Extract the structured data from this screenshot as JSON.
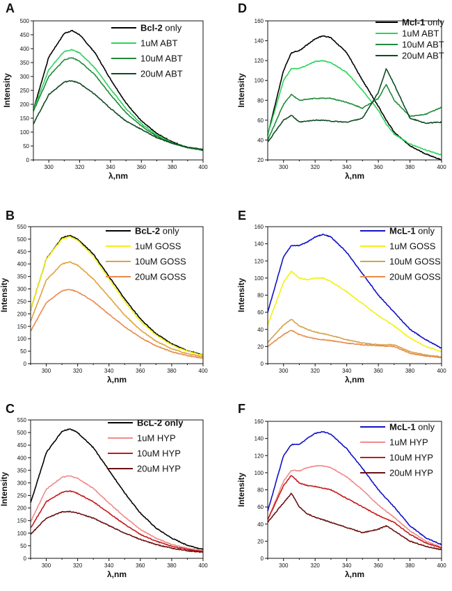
{
  "chart_data": [
    {
      "id": "A",
      "letter": "A",
      "type": "line",
      "xlabel": "λ,nm",
      "ylabel": "Intensity",
      "xlim": [
        290,
        400
      ],
      "ylim": [
        0,
        500
      ],
      "xticks": [
        300,
        320,
        340,
        360,
        380,
        400
      ],
      "yticks": [
        0,
        50,
        100,
        150,
        200,
        250,
        300,
        350,
        400,
        450,
        500
      ],
      "x": [
        290,
        300,
        310,
        315,
        320,
        330,
        340,
        350,
        360,
        370,
        380,
        390,
        400
      ],
      "series": [
        {
          "name": "Bcl-2 only",
          "bold_part": "Bcl-2",
          "rest": " only",
          "color": "#000000",
          "values": [
            180,
            370,
            455,
            465,
            450,
            385,
            290,
            205,
            140,
            95,
            65,
            45,
            35
          ]
        },
        {
          "name": "1uM ABT",
          "bold_part": "",
          "rest": "1uM ABT",
          "color": "#2ad45a",
          "values": [
            180,
            325,
            390,
            396,
            385,
            330,
            255,
            185,
            130,
            90,
            62,
            45,
            35
          ]
        },
        {
          "name": "10uM ABT",
          "bold_part": "",
          "rest": "10uM ABT",
          "color": "#1f8a3a",
          "values": [
            175,
            300,
            360,
            368,
            355,
            305,
            235,
            170,
            122,
            85,
            60,
            44,
            35
          ]
        },
        {
          "name": "20uM ABT",
          "bold_part": "",
          "rest": "20uM ABT",
          "color": "#0e4a22",
          "values": [
            130,
            235,
            280,
            285,
            275,
            235,
            185,
            140,
            110,
            80,
            60,
            45,
            38
          ]
        }
      ]
    },
    {
      "id": "D",
      "letter": "D",
      "type": "line",
      "xlabel": "λ,nm",
      "ylabel": "Intensity",
      "xlim": [
        290,
        400
      ],
      "ylim": [
        20,
        160
      ],
      "xticks": [
        300,
        320,
        340,
        360,
        380,
        400
      ],
      "yticks": [
        20,
        40,
        60,
        80,
        100,
        120,
        140,
        160
      ],
      "x": [
        290,
        300,
        305,
        310,
        320,
        325,
        330,
        340,
        350,
        360,
        365,
        370,
        380,
        390,
        400
      ],
      "series": [
        {
          "name": "Mcl-1 only",
          "bold_part": "Mcl-1",
          "rest": " only",
          "color": "#000000",
          "values": [
            45,
            110,
            128,
            130,
            142,
            145,
            143,
            128,
            100,
            74,
            60,
            48,
            34,
            26,
            20
          ]
        },
        {
          "name": "1uM ABT",
          "bold_part": "",
          "rest": "1uM ABT",
          "color": "#2ad45a",
          "values": [
            45,
            100,
            112,
            112,
            119,
            120,
            118,
            108,
            90,
            70,
            56,
            46,
            36,
            30,
            25
          ]
        },
        {
          "name": "10uM ABT",
          "bold_part": "",
          "rest": "10uM ABT",
          "color": "#1f8a3a",
          "values": [
            40,
            76,
            86,
            80,
            82,
            82,
            82,
            78,
            72,
            82,
            96,
            80,
            64,
            66,
            73
          ]
        },
        {
          "name": "20uM ABT",
          "bold_part": "",
          "rest": "20uM ABT",
          "color": "#0e4a22",
          "values": [
            38,
            60,
            65,
            58,
            60,
            60,
            59,
            58,
            62,
            88,
            112,
            96,
            62,
            57,
            58
          ]
        }
      ]
    },
    {
      "id": "B",
      "letter": "B",
      "type": "line",
      "xlabel": "λ,nm",
      "ylabel": "Intensity",
      "xlim": [
        290,
        400
      ],
      "ylim": [
        0,
        550
      ],
      "xticks": [
        300,
        320,
        340,
        360,
        380,
        400
      ],
      "yticks": [
        0,
        50,
        100,
        150,
        200,
        250,
        300,
        350,
        400,
        450,
        500,
        550
      ],
      "x": [
        290,
        300,
        310,
        315,
        320,
        330,
        340,
        350,
        360,
        370,
        380,
        390,
        400
      ],
      "series": [
        {
          "name": "BcL-2 only",
          "bold_part": "BcL-2",
          "rest": " only",
          "color": "#000000",
          "values": [
            215,
            420,
            505,
            515,
            500,
            440,
            350,
            260,
            180,
            120,
            80,
            52,
            35
          ]
        },
        {
          "name": "1uM GOSS",
          "bold_part": "",
          "rest": "1uM GOSS",
          "color": "#f2f20f",
          "values": [
            215,
            420,
            500,
            510,
            495,
            430,
            340,
            250,
            170,
            115,
            75,
            50,
            33
          ]
        },
        {
          "name": "10uM GOSS",
          "bold_part": "",
          "rest": "10uM GOSS",
          "color": "#e0a23a",
          "values": [
            170,
            335,
            400,
            408,
            395,
            340,
            268,
            195,
            135,
            90,
            60,
            40,
            28
          ]
        },
        {
          "name": "20uM GOSS",
          "bold_part": "",
          "rest": "20uM GOSS",
          "color": "#e88a4a",
          "values": [
            130,
            245,
            292,
            298,
            288,
            250,
            198,
            148,
            105,
            72,
            48,
            32,
            22
          ]
        }
      ]
    },
    {
      "id": "E",
      "letter": "E",
      "type": "line",
      "xlabel": "λ,nm",
      "ylabel": "Intensity",
      "xlim": [
        290,
        400
      ],
      "ylim": [
        0,
        160
      ],
      "xticks": [
        300,
        320,
        340,
        360,
        380,
        400
      ],
      "yticks": [
        0,
        20,
        40,
        60,
        80,
        100,
        120,
        140,
        160
      ],
      "x": [
        290,
        300,
        305,
        310,
        315,
        320,
        325,
        330,
        340,
        350,
        360,
        370,
        380,
        390,
        400
      ],
      "series": [
        {
          "name": "McL-1 only",
          "bold_part": "McL-1",
          "rest": " only",
          "color": "#1010c8",
          "values": [
            60,
            125,
            138,
            138,
            142,
            148,
            151,
            148,
            130,
            105,
            80,
            60,
            40,
            28,
            18
          ]
        },
        {
          "name": "1uM GOSS",
          "bold_part": "",
          "rest": "1uM GOSS",
          "color": "#f2f20f",
          "values": [
            45,
            95,
            108,
            100,
            98,
            100,
            100,
            96,
            84,
            70,
            56,
            44,
            30,
            20,
            14
          ]
        },
        {
          "name": "10uM GOSS",
          "bold_part": "",
          "rest": "10uM GOSS",
          "color": "#d4a24a",
          "values": [
            25,
            45,
            52,
            44,
            40,
            37,
            35,
            33,
            28,
            24,
            22,
            22,
            14,
            10,
            8
          ]
        },
        {
          "name": "20uM GOSS",
          "bold_part": "",
          "rest": "20uM GOSS",
          "color": "#e88a4a",
          "values": [
            20,
            34,
            39,
            34,
            31,
            29,
            28,
            27,
            24,
            22,
            21,
            20,
            12,
            9,
            7
          ]
        }
      ]
    },
    {
      "id": "C",
      "letter": "C",
      "type": "line",
      "xlabel": "λ,nm",
      "ylabel": "Intensity",
      "xlim": [
        290,
        400
      ],
      "ylim": [
        0,
        550
      ],
      "xticks": [
        300,
        320,
        340,
        360,
        380,
        400
      ],
      "yticks": [
        0,
        50,
        100,
        150,
        200,
        250,
        300,
        350,
        400,
        450,
        500,
        550
      ],
      "x": [
        290,
        300,
        310,
        315,
        320,
        330,
        340,
        350,
        360,
        370,
        380,
        390,
        400
      ],
      "series": [
        {
          "name": "BcL-2 only",
          "bold_part": "BcL-2 only",
          "rest": "",
          "color": "#000000",
          "values": [
            220,
            420,
            505,
            515,
            500,
            440,
            350,
            260,
            180,
            120,
            80,
            52,
            35
          ]
        },
        {
          "name": "1uM HYP",
          "bold_part": "",
          "rest": "1uM HYP",
          "color": "#f08a8a",
          "values": [
            145,
            275,
            322,
            328,
            318,
            278,
            220,
            165,
            115,
            80,
            55,
            40,
            30
          ]
        },
        {
          "name": "10uM HYP",
          "bold_part": "",
          "rest": "10uM HYP",
          "color": "#c41a1a",
          "values": [
            120,
            225,
            262,
            268,
            258,
            225,
            180,
            135,
            95,
            68,
            48,
            35,
            27
          ]
        },
        {
          "name": "20uM HYP",
          "bold_part": "",
          "rest": "20uM HYP",
          "color": "#6a1010",
          "values": [
            95,
            160,
            184,
            186,
            180,
            160,
            130,
            100,
            75,
            55,
            40,
            30,
            24
          ]
        }
      ]
    },
    {
      "id": "F",
      "letter": "F",
      "type": "line",
      "xlabel": "λ,nm",
      "ylabel": "Intensity",
      "xlim": [
        290,
        400
      ],
      "ylim": [
        0,
        160
      ],
      "xticks": [
        300,
        320,
        340,
        360,
        380,
        400
      ],
      "yticks": [
        0,
        20,
        40,
        60,
        80,
        100,
        120,
        140,
        160
      ],
      "x": [
        290,
        300,
        305,
        310,
        315,
        320,
        325,
        330,
        340,
        350,
        360,
        365,
        370,
        380,
        390,
        400
      ],
      "series": [
        {
          "name": "McL-1 only",
          "bold_part": "McL-1",
          "rest": " only",
          "color": "#1010c8",
          "values": [
            55,
            120,
            133,
            133,
            140,
            146,
            148,
            145,
            128,
            105,
            80,
            70,
            60,
            38,
            24,
            16
          ]
        },
        {
          "name": "1uM HYP",
          "bold_part": "",
          "rest": "1uM HYP",
          "color": "#f08a8a",
          "values": [
            45,
            90,
            103,
            102,
            106,
            108,
            108,
            106,
            95,
            80,
            62,
            55,
            48,
            32,
            20,
            13
          ]
        },
        {
          "name": "10uM HYP",
          "bold_part": "",
          "rest": "10uM HYP",
          "color": "#c41a1a",
          "values": [
            45,
            85,
            97,
            88,
            85,
            84,
            82,
            80,
            70,
            60,
            50,
            46,
            42,
            28,
            18,
            12
          ]
        },
        {
          "name": "20uM HYP",
          "bold_part": "",
          "rest": "20uM HYP",
          "color": "#6a1010",
          "values": [
            42,
            65,
            76,
            60,
            52,
            48,
            45,
            42,
            36,
            30,
            34,
            38,
            32,
            20,
            14,
            10
          ]
        }
      ]
    }
  ]
}
